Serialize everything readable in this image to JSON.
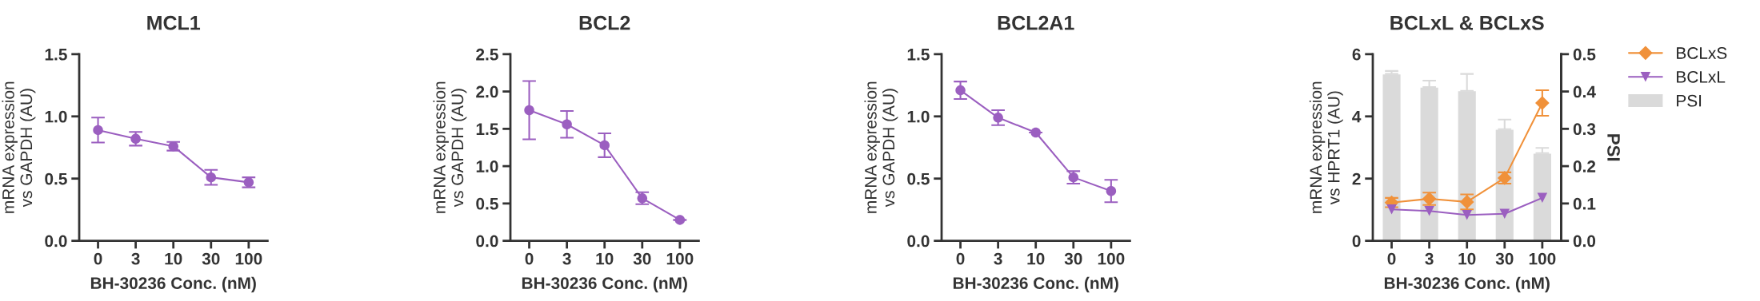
{
  "chart_data": [
    {
      "type": "line",
      "title": "MCL1",
      "xlabel": "BH-30236 Conc. (nM)",
      "ylabel": "mRNA expression\nvs GAPDH (AU)",
      "categories": [
        "0",
        "3",
        "10",
        "30",
        "100"
      ],
      "marker": "circle",
      "grid": false,
      "legend": false,
      "ylim": [
        0,
        1.5
      ],
      "yticks": [
        {
          "value": 0,
          "label": "0.0"
        },
        0.5,
        {
          "value": 1,
          "label": "1.0"
        },
        1.5
      ],
      "series": [
        {
          "color": "#9b5fc0",
          "values": [
            0.89,
            0.82,
            0.76,
            0.51,
            0.47
          ],
          "errors": [
            0.1,
            0.055,
            0.035,
            0.06,
            0.04
          ]
        }
      ]
    },
    {
      "type": "line",
      "title": "BCL2",
      "xlabel": "BH-30236 Conc. (nM)",
      "ylabel": "mRNA expression\nvs GAPDH (AU)",
      "categories": [
        "0",
        "3",
        "10",
        "30",
        "100"
      ],
      "marker": "circle",
      "grid": false,
      "legend": false,
      "ylim": [
        0,
        2.5
      ],
      "yticks": [
        {
          "value": 0,
          "label": "0.0"
        },
        0.5,
        {
          "value": 1,
          "label": "1.0"
        },
        1.5,
        {
          "value": 2,
          "label": "2.0"
        },
        2.5
      ],
      "series": [
        {
          "color": "#9b5fc0",
          "values": [
            1.75,
            1.56,
            1.28,
            0.57,
            0.28
          ],
          "errors": [
            0.39,
            0.18,
            0.16,
            0.08,
            null
          ]
        }
      ]
    },
    {
      "type": "line",
      "title": "BCL2A1",
      "xlabel": "BH-30236 Conc. (nM)",
      "ylabel": "mRNA expression\nvs GAPDH (AU)",
      "categories": [
        "0",
        "3",
        "10",
        "30",
        "100"
      ],
      "marker": "circle",
      "grid": false,
      "legend": false,
      "ylim": [
        0,
        1.5
      ],
      "yticks": [
        {
          "value": 0,
          "label": "0.0"
        },
        0.5,
        {
          "value": 1,
          "label": "1.0"
        },
        1.5
      ],
      "series": [
        {
          "color": "#9b5fc0",
          "values": [
            1.21,
            0.99,
            0.87,
            0.51,
            0.4
          ],
          "errors": [
            0.07,
            0.06,
            null,
            0.05,
            0.09
          ]
        }
      ]
    },
    {
      "type": "line",
      "title": "BCLxL & BCLxS",
      "xlabel": "BH-30236 Conc. (nM)",
      "ylabel": "mRNA expression\nvs HPRT1 (AU)",
      "y2label": "PSI",
      "categories": [
        "0",
        "3",
        "10",
        "30",
        "100"
      ],
      "grid": false,
      "legend": "right",
      "ylim": [
        0,
        6
      ],
      "yticks": [
        0,
        2,
        4,
        6
      ],
      "y2lim": [
        0,
        0.5
      ],
      "y2ticks": [
        {
          "value": 0,
          "label": "0.0"
        },
        0.1,
        0.2,
        0.3,
        0.4,
        0.5
      ],
      "series": [
        {
          "name": "BCLxS",
          "color": "#f0913a",
          "marker": "diamond",
          "values": [
            1.23,
            1.35,
            1.25,
            2.02,
            4.43
          ],
          "errors": [
            0.15,
            0.2,
            0.24,
            0.18,
            0.41
          ]
        },
        {
          "name": "BCLxL",
          "color": "#9b5fc0",
          "marker": "triangle",
          "values": [
            1.01,
            0.96,
            0.83,
            0.87,
            1.38
          ]
        },
        {
          "name": "PSI",
          "type": "bar",
          "axis": "y2",
          "color": "#dadada",
          "values": [
            0.447,
            0.412,
            0.402,
            0.299,
            0.235
          ],
          "errors": [
            [
              0.447,
              0.455
            ],
            [
              0.412,
              0.429
            ],
            [
              0.402,
              0.447
            ],
            [
              0.299,
              0.325
            ],
            [
              0.235,
              0.249
            ]
          ]
        }
      ]
    }
  ]
}
